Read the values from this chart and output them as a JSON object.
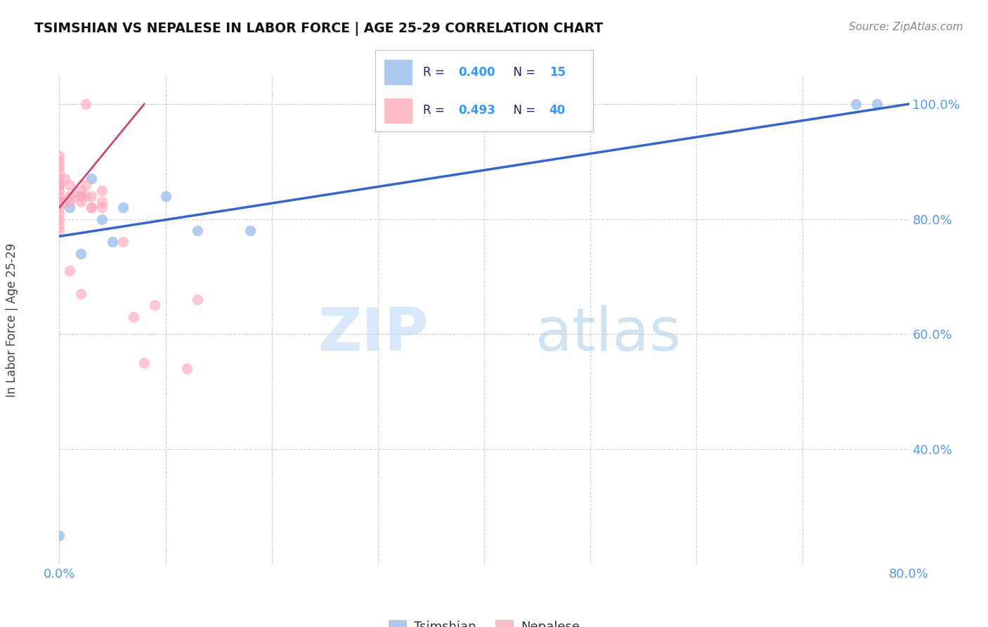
{
  "title": "TSIMSHIAN VS NEPALESE IN LABOR FORCE | AGE 25-29 CORRELATION CHART",
  "source": "Source: ZipAtlas.com",
  "ylabel_label": "In Labor Force | Age 25-29",
  "watermark_zip": "ZIP",
  "watermark_atlas": "atlas",
  "xlim": [
    0.0,
    0.8
  ],
  "ylim": [
    0.2,
    1.05
  ],
  "xtick_positions": [
    0.0,
    0.1,
    0.2,
    0.3,
    0.4,
    0.5,
    0.6,
    0.7,
    0.8
  ],
  "xtick_labels": [
    "0.0%",
    "",
    "",
    "",
    "",
    "",
    "",
    "",
    "80.0%"
  ],
  "ytick_positions": [
    0.4,
    0.6,
    0.8,
    1.0
  ],
  "ytick_labels": [
    "40.0%",
    "60.0%",
    "80.0%",
    "100.0%"
  ],
  "grid_color": "#cccccc",
  "background_color": "#ffffff",
  "tsimshian_color": "#99bbee",
  "nepalese_color": "#ffaabb",
  "tsimshian_line_color": "#3366cc",
  "nepalese_line_color": "#cc4477",
  "tsimshian_R": 0.4,
  "tsimshian_N": 15,
  "nepalese_R": 0.493,
  "nepalese_N": 40,
  "tick_color": "#5599ee",
  "legend_text_color": "#222255",
  "legend_value_color": "#3399ff",
  "tsimshian_x": [
    0.0,
    0.0,
    0.75,
    0.77,
    0.01,
    0.02,
    0.03,
    0.04,
    0.05,
    0.06,
    0.1,
    0.13,
    0.18,
    0.02,
    0.0
  ],
  "tsimshian_y": [
    0.83,
    0.86,
    1.0,
    1.0,
    0.82,
    0.84,
    0.87,
    0.8,
    0.76,
    0.82,
    0.84,
    0.78,
    0.78,
    0.74,
    0.25
  ],
  "nepalese_x": [
    0.0,
    0.0,
    0.0,
    0.0,
    0.0,
    0.0,
    0.0,
    0.0,
    0.0,
    0.0,
    0.0,
    0.005,
    0.005,
    0.01,
    0.01,
    0.01,
    0.015,
    0.02,
    0.02,
    0.02,
    0.025,
    0.025,
    0.03,
    0.03,
    0.04,
    0.04,
    0.0,
    0.0,
    0.0,
    0.01,
    0.02,
    0.025,
    0.03,
    0.04,
    0.06,
    0.07,
    0.09,
    0.12,
    0.13,
    0.08
  ],
  "nepalese_y": [
    0.83,
    0.84,
    0.85,
    0.86,
    0.87,
    0.88,
    0.89,
    0.9,
    0.91,
    0.82,
    0.81,
    0.87,
    0.83,
    0.86,
    0.84,
    0.83,
    0.84,
    0.83,
    0.84,
    0.85,
    0.86,
    0.84,
    0.84,
    0.82,
    0.85,
    0.83,
    0.79,
    0.78,
    0.8,
    0.71,
    0.67,
    1.0,
    0.82,
    0.82,
    0.76,
    0.63,
    0.65,
    0.54,
    0.66,
    0.55
  ],
  "blue_line_x": [
    0.0,
    0.8
  ],
  "blue_line_y": [
    0.77,
    1.0
  ],
  "pink_line_x": [
    0.0,
    0.08
  ],
  "pink_line_y": [
    0.82,
    1.0
  ]
}
